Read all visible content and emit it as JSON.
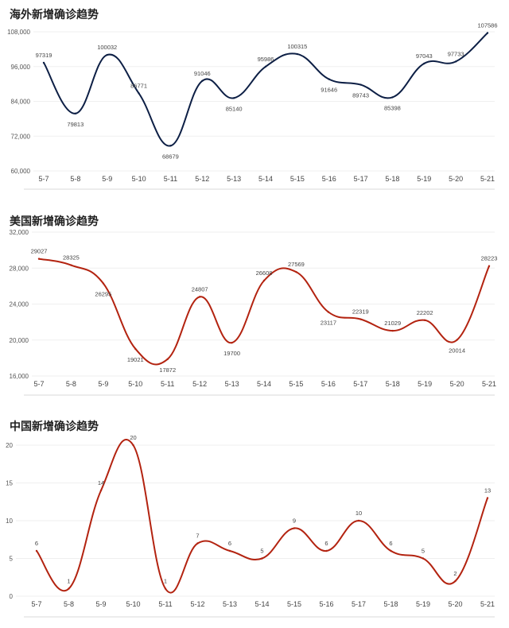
{
  "chart_data": [
    {
      "type": "line",
      "title": "海外新增确诊趋势",
      "categories": [
        "5-7",
        "5-8",
        "5-9",
        "5-10",
        "5-11",
        "5-12",
        "5-13",
        "5-14",
        "5-15",
        "5-16",
        "5-17",
        "5-18",
        "5-19",
        "5-20",
        "5-21"
      ],
      "values": [
        97319,
        79813,
        100032,
        86771,
        68679,
        91046,
        85140,
        95986,
        100315,
        91646,
        89743,
        85398,
        97043,
        97733,
        107586
      ],
      "value_labels": [
        "97319",
        "79813",
        "100032",
        "86771",
        "68679",
        "91046",
        "85140",
        "95986",
        "100315",
        "91646",
        "89743",
        "85398",
        "97043",
        "97733",
        "107586"
      ],
      "label_pos": [
        "above",
        "below",
        "above",
        "above",
        "below",
        "above",
        "below",
        "above",
        "above",
        "below",
        "below",
        "below",
        "above",
        "above",
        "above"
      ],
      "ylim": [
        60000,
        108000
      ],
      "yticks": [
        60000,
        72000,
        84000,
        96000,
        108000
      ],
      "ytick_labels": [
        "60,000",
        "72,000",
        "84,000",
        "96,000",
        "108,000"
      ],
      "color": "#0d1f45"
    },
    {
      "type": "line",
      "title": "美国新增确诊趋势",
      "categories": [
        "5-7",
        "5-8",
        "5-9",
        "5-10",
        "5-11",
        "5-12",
        "5-13",
        "5-14",
        "5-15",
        "5-16",
        "5-17",
        "5-18",
        "5-19",
        "5-20",
        "5-21"
      ],
      "values": [
        29027,
        28325,
        26295,
        19021,
        17872,
        24807,
        19700,
        26608,
        27569,
        23117,
        22319,
        21029,
        22202,
        20014,
        28223
      ],
      "value_labels": [
        "29027",
        "28325",
        "26295",
        "19021",
        "17872",
        "24807",
        "19700",
        "26608",
        "27569",
        "23117",
        "22319",
        "21029",
        "22202",
        "20014",
        "28223"
      ],
      "label_pos": [
        "above",
        "above",
        "below",
        "below",
        "below",
        "above",
        "below",
        "above",
        "above",
        "below",
        "above",
        "above",
        "above",
        "below",
        "above"
      ],
      "ylim": [
        16000,
        32000
      ],
      "yticks": [
        16000,
        20000,
        24000,
        28000,
        32000
      ],
      "ytick_labels": [
        "16,000",
        "20,000",
        "24,000",
        "28,000",
        "32,000"
      ],
      "color": "#b32310"
    },
    {
      "type": "line",
      "title": "中国新增确诊趋势",
      "categories": [
        "5-7",
        "5-8",
        "5-9",
        "5-10",
        "5-11",
        "5-12",
        "5-13",
        "5-14",
        "5-15",
        "5-16",
        "5-17",
        "5-18",
        "5-19",
        "5-20",
        "5-21"
      ],
      "values": [
        6,
        1,
        14,
        20,
        1,
        7,
        6,
        5,
        9,
        6,
        10,
        6,
        5,
        2,
        13
      ],
      "value_labels": [
        "6",
        "1",
        "14",
        "20",
        "1",
        "7",
        "6",
        "5",
        "9",
        "6",
        "10",
        "6",
        "5",
        "2",
        "13"
      ],
      "label_pos": [
        "above",
        "above",
        "above",
        "above",
        "above",
        "above",
        "above",
        "above",
        "above",
        "above",
        "above",
        "above",
        "above",
        "above",
        "above"
      ],
      "ylim": [
        0,
        20
      ],
      "yticks": [
        0,
        5,
        10,
        15,
        20
      ],
      "ytick_labels": [
        "0",
        "5",
        "10",
        "15",
        "20"
      ],
      "color": "#b32310"
    }
  ]
}
